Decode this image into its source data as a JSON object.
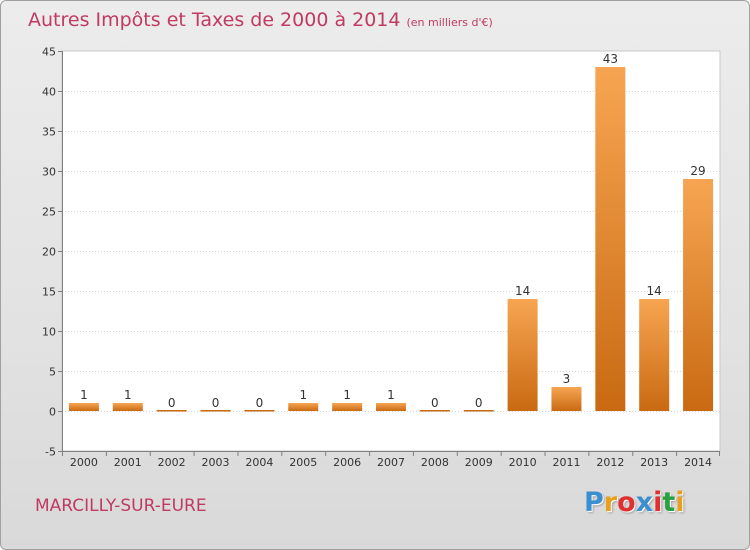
{
  "header": {
    "title": "Autres Impôts et Taxes de 2000 à 2014",
    "unit_note": "(en milliers d'€)"
  },
  "footer": {
    "commune": "MARCILLY-SUR-EURE",
    "logo": {
      "letters": [
        "P",
        "r",
        "o",
        "x",
        "i",
        "t",
        "i"
      ],
      "colors": [
        "#3a8fd0",
        "#e8a020",
        "#e03030",
        "#3a8fd0",
        "#e03030",
        "#2aa040",
        "#e8a020"
      ]
    }
  },
  "colors": {
    "bar_light": "#f7a552",
    "bar_dark": "#c96a12",
    "text_accent": "#c03a62",
    "plot_bg": "#ffffff"
  },
  "chart_data": {
    "type": "bar",
    "categories": [
      "2000",
      "2001",
      "2002",
      "2003",
      "2004",
      "2005",
      "2006",
      "2007",
      "2008",
      "2009",
      "2010",
      "2011",
      "2012",
      "2013",
      "2014"
    ],
    "values": [
      1,
      1,
      0,
      0,
      0,
      1,
      1,
      1,
      0,
      0,
      14,
      3,
      43,
      14,
      29
    ],
    "value_labels": [
      "1",
      "1",
      "0",
      "0",
      "0",
      "1",
      "1",
      "1",
      "0",
      "0",
      "14",
      "3",
      "43",
      "14",
      "29"
    ],
    "title": "Autres Impôts et Taxes de 2000 à 2014",
    "xlabel": "",
    "ylabel": "",
    "ylim": [
      -5,
      45
    ],
    "yticks": [
      -5,
      0,
      5,
      10,
      15,
      20,
      25,
      30,
      35,
      40,
      45
    ],
    "grid": true,
    "legend": "none"
  }
}
